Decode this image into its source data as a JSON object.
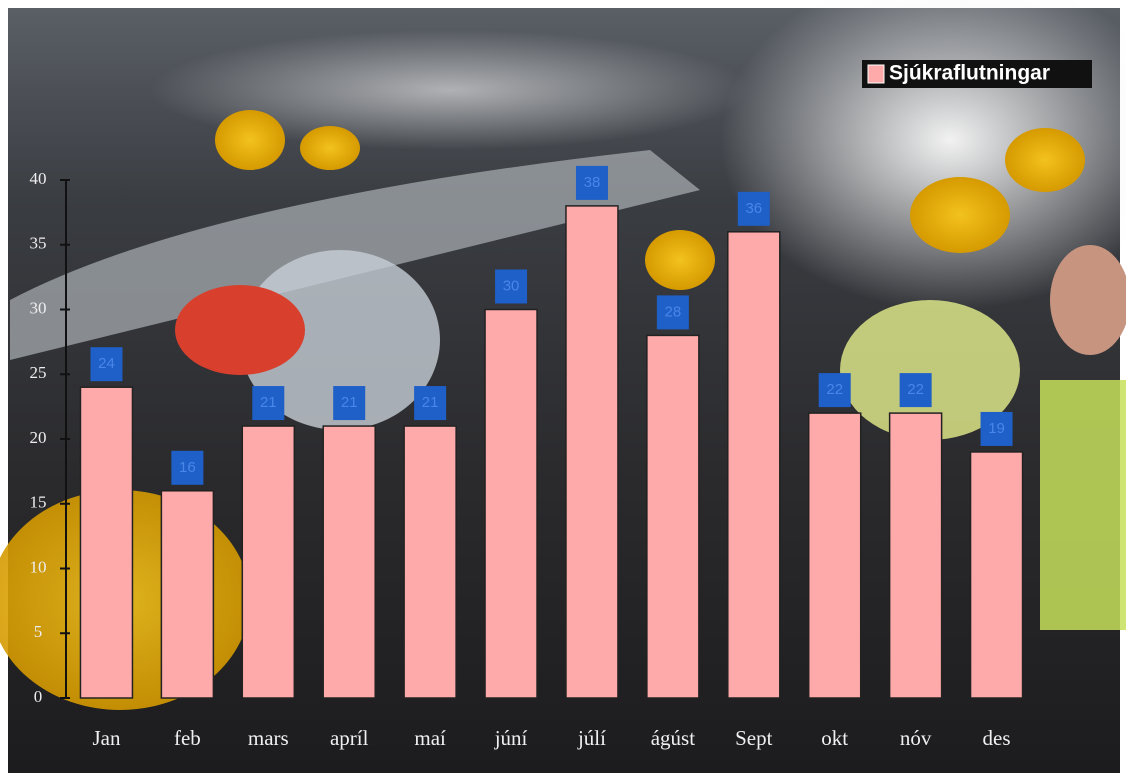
{
  "chart_data": {
    "type": "bar",
    "categories": [
      "Jan",
      "feb",
      "mars",
      "apríl",
      "maí",
      "júní",
      "júlí",
      "ágúst",
      "Sept",
      "okt",
      "nóv",
      "des"
    ],
    "series": [
      {
        "name": "Sjúkraflutningar",
        "color": "#ffaaaa",
        "values": [
          24,
          16,
          21,
          21,
          21,
          30,
          38,
          28,
          36,
          22,
          22,
          19
        ]
      }
    ],
    "ylim": [
      0,
      40
    ],
    "yticks": [
      0,
      5,
      10,
      15,
      20,
      25,
      30,
      35,
      40
    ],
    "legend": "top-right"
  }
}
